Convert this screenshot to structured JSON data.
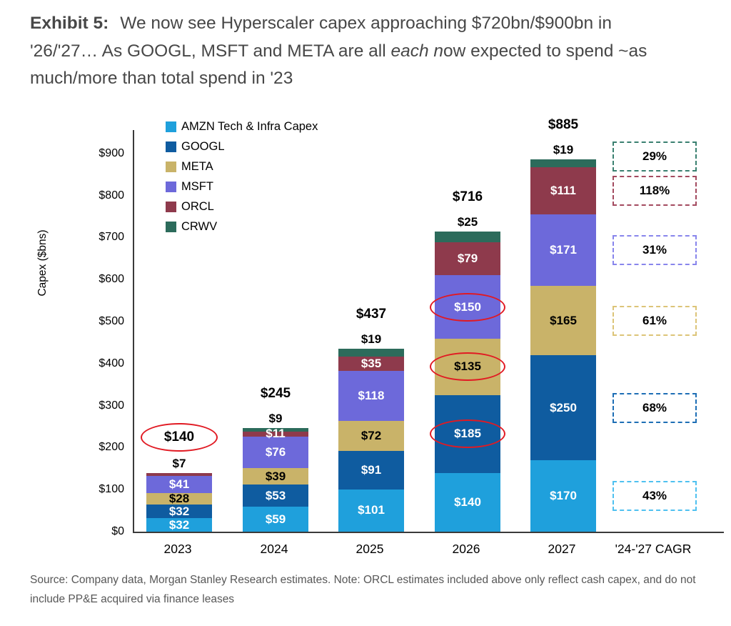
{
  "title": {
    "exhibit": "Exhibit 5:",
    "line1": "We now see Hyperscaler capex approaching $720bn/$900bn in",
    "line2_pre": "'26/'27… As GOOGL, MSFT and META are all ",
    "line2_italic": "each n",
    "line2_post": "ow expected to spend ~as",
    "line3": "much/more than total spend in '23"
  },
  "source": "Source: Company data, Morgan Stanley Research estimates. Note: ORCL estimates included above only reflect cash capex, and do not include PP&E acquired via finance leases",
  "chart_data": {
    "type": "bar",
    "stacked": true,
    "title": "",
    "xlabel": "",
    "ylabel": "Capex ($bns)",
    "ylim": [
      0,
      956
    ],
    "grid": false,
    "legend_position": "top-left-inside",
    "annotation_color": "#e11a23",
    "axis_color": "#3a3a3a",
    "yticks": [
      {
        "value": 0,
        "label": "$0"
      },
      {
        "value": 100,
        "label": "$100"
      },
      {
        "value": 200,
        "label": "$200"
      },
      {
        "value": 300,
        "label": "$300"
      },
      {
        "value": 400,
        "label": "$400"
      },
      {
        "value": 500,
        "label": "$500"
      },
      {
        "value": 600,
        "label": "$600"
      },
      {
        "value": 700,
        "label": "$700"
      },
      {
        "value": 800,
        "label": "$800"
      },
      {
        "value": 900,
        "label": "$900"
      }
    ],
    "categories": [
      "2023",
      "2024",
      "2025",
      "2026",
      "2027"
    ],
    "cagr_column_label": "'24-'27 CAGR",
    "series": [
      {
        "name": "AMZN Tech & Infra Capex",
        "color": "#1fa0dc",
        "values": [
          32,
          59,
          101,
          140,
          170
        ],
        "cagr": "43%",
        "cagr_border": "#4fc1f0"
      },
      {
        "name": "GOOGL",
        "color": "#0f5ca0",
        "values": [
          32,
          53,
          91,
          185,
          250
        ],
        "cagr": "68%",
        "cagr_border": "#1d6eb5"
      },
      {
        "name": "META",
        "color": "#c9b369",
        "values": [
          28,
          39,
          72,
          135,
          165
        ],
        "cagr": "61%",
        "cagr_border": "#dcc478"
      },
      {
        "name": "MSFT",
        "color": "#6d69da",
        "values": [
          41,
          76,
          118,
          150,
          171
        ],
        "cagr": "31%",
        "cagr_border": "#8885ec"
      },
      {
        "name": "ORCL",
        "color": "#8e3a4c",
        "values": [
          7,
          11,
          35,
          79,
          111
        ],
        "cagr": "118%",
        "cagr_border": "#a34a5f"
      },
      {
        "name": "CRWV",
        "color": "#2c6b5b",
        "values": [
          0,
          9,
          19,
          25,
          19
        ],
        "cagr": "29%",
        "cagr_border": "#3a8070"
      }
    ],
    "bars": [
      {
        "year": "2023",
        "total": "$140",
        "total_circled": true,
        "above_label": "$7",
        "segment_labels": [
          {
            "text": "$32",
            "color": "#ffffff"
          },
          {
            "text": "$32",
            "color": "#ffffff"
          },
          {
            "text": "$28",
            "color": "#000000"
          },
          {
            "text": "$41",
            "color": "#ffffff"
          },
          null,
          null
        ]
      },
      {
        "year": "2024",
        "total": "$245",
        "total_circled": false,
        "above_label": "$9",
        "segment_labels": [
          {
            "text": "$59",
            "color": "#ffffff"
          },
          {
            "text": "$53",
            "color": "#ffffff"
          },
          {
            "text": "$39",
            "color": "#000000"
          },
          {
            "text": "$76",
            "color": "#ffffff"
          },
          {
            "text": "$11",
            "color": "#ffffff"
          },
          null
        ]
      },
      {
        "year": "2025",
        "total": "$437",
        "total_circled": false,
        "above_label": "$19",
        "segment_labels": [
          {
            "text": "$101",
            "color": "#ffffff"
          },
          {
            "text": "$91",
            "color": "#ffffff"
          },
          {
            "text": "$72",
            "color": "#000000"
          },
          {
            "text": "$118",
            "color": "#ffffff"
          },
          {
            "text": "$35",
            "color": "#ffffff"
          },
          null
        ]
      },
      {
        "year": "2026",
        "total": "$716",
        "total_circled": false,
        "above_label": "$25",
        "segment_labels": [
          {
            "text": "$140",
            "color": "#ffffff"
          },
          {
            "text": "$185",
            "color": "#ffffff",
            "circled": true
          },
          {
            "text": "$135",
            "color": "#000000",
            "circled": true
          },
          {
            "text": "$150",
            "color": "#ffffff",
            "circled": true
          },
          {
            "text": "$79",
            "color": "#ffffff"
          },
          null
        ]
      },
      {
        "year": "2027",
        "total": "$885",
        "total_circled": false,
        "above_label": "$19",
        "segment_labels": [
          {
            "text": "$170",
            "color": "#ffffff"
          },
          {
            "text": "$250",
            "color": "#ffffff"
          },
          {
            "text": "$165",
            "color": "#000000"
          },
          {
            "text": "$171",
            "color": "#ffffff"
          },
          {
            "text": "$111",
            "color": "#ffffff"
          },
          null
        ]
      }
    ]
  }
}
